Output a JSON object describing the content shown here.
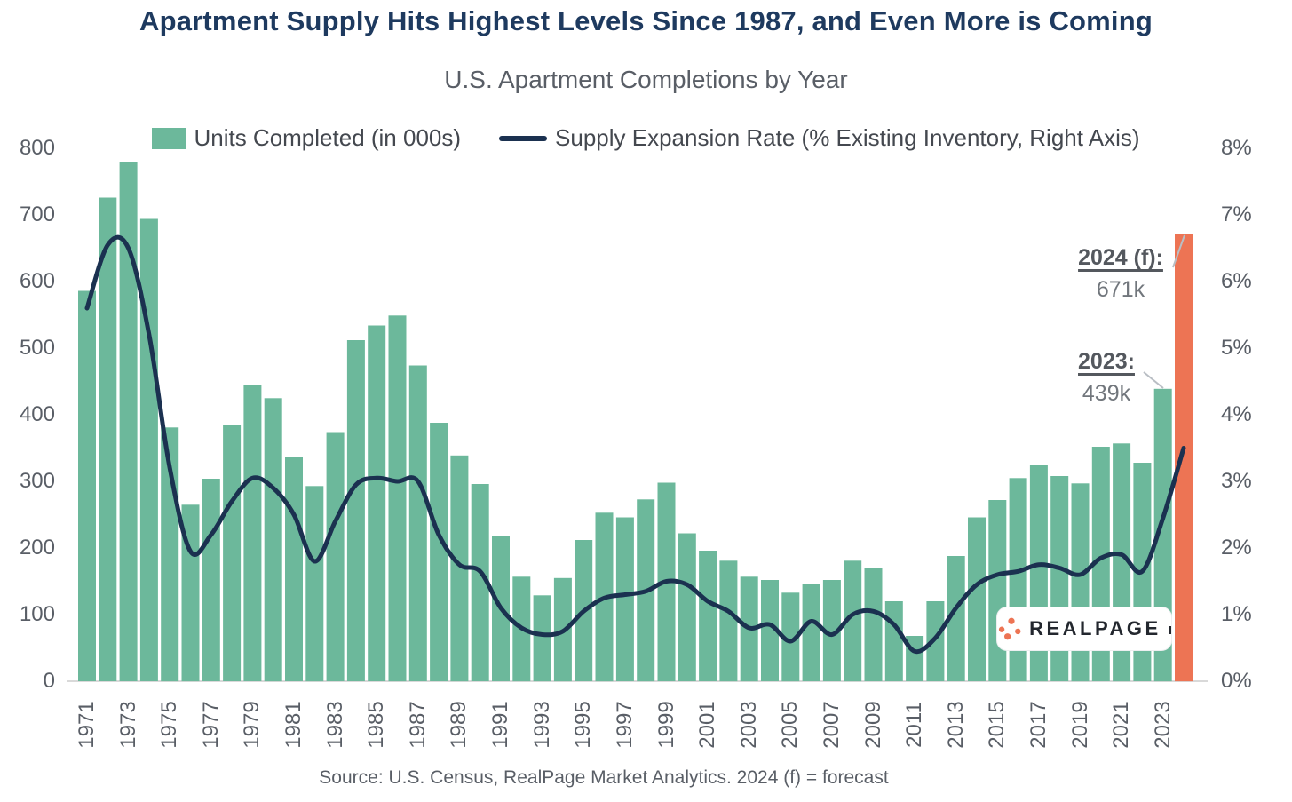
{
  "header": {
    "title": "Apartment Supply Hits Highest Levels Since 1987, and Even More is Coming",
    "subtitle": "U.S. Apartment Completions by Year"
  },
  "legend": {
    "bar": {
      "label": "Units Completed (in 000s)"
    },
    "line": {
      "label": "Supply Expansion Rate (% Existing Inventory, Right Axis)"
    }
  },
  "annotations": {
    "forecast": {
      "label": "2024 (f):",
      "value": "671k"
    },
    "latest": {
      "label": "2023:",
      "value": "439k"
    }
  },
  "footer": {
    "source": "Source: U.S. Census, RealPage Market Analytics. 2024 (f) = forecast"
  },
  "logo": {
    "text": "REALPAGE"
  },
  "colors": {
    "bar_green": "#6CB89B",
    "bar_orange": "#ED7454",
    "line_navy": "#1B3150",
    "title_navy": "#1E3A5F",
    "axis_gray": "#595E66",
    "baseline_gray": "#D9D9D9",
    "connector_gray": "#B9BEC4"
  },
  "chart_data": {
    "type": "bar",
    "title": "U.S. Apartment Completions by Year",
    "categories": [
      1971,
      1972,
      1973,
      1974,
      1975,
      1976,
      1977,
      1978,
      1979,
      1980,
      1981,
      1982,
      1983,
      1984,
      1985,
      1986,
      1987,
      1988,
      1989,
      1990,
      1991,
      1992,
      1993,
      1994,
      1995,
      1996,
      1997,
      1998,
      1999,
      2000,
      2001,
      2002,
      2003,
      2004,
      2005,
      2006,
      2007,
      2008,
      2009,
      2010,
      2011,
      2012,
      2013,
      2014,
      2015,
      2016,
      2017,
      2018,
      2019,
      2020,
      2021,
      2022,
      2023,
      2024
    ],
    "series": [
      {
        "name": "Units Completed (in 000s)",
        "type": "bar",
        "axis": "left",
        "unit": "thousands of units",
        "values": [
          586,
          726,
          780,
          694,
          381,
          265,
          304,
          384,
          444,
          425,
          336,
          293,
          374,
          512,
          534,
          549,
          474,
          388,
          339,
          296,
          218,
          157,
          129,
          155,
          212,
          253,
          246,
          273,
          298,
          222,
          196,
          181,
          157,
          152,
          133,
          146,
          152,
          181,
          170,
          120,
          68,
          120,
          188,
          246,
          272,
          305,
          325,
          308,
          297,
          352,
          357,
          328,
          439,
          671
        ]
      },
      {
        "name": "Supply Expansion Rate (% Existing Inventory, Right Axis)",
        "type": "line",
        "axis": "right",
        "unit": "percent",
        "values": [
          5.6,
          6.55,
          6.5,
          5.2,
          3.2,
          1.95,
          2.2,
          2.7,
          3.05,
          2.9,
          2.5,
          1.8,
          2.4,
          2.95,
          3.05,
          3.0,
          3.0,
          2.2,
          1.75,
          1.65,
          1.1,
          0.8,
          0.7,
          0.75,
          1.05,
          1.25,
          1.3,
          1.35,
          1.5,
          1.45,
          1.2,
          1.05,
          0.8,
          0.85,
          0.6,
          0.9,
          0.7,
          1.0,
          1.05,
          0.85,
          0.45,
          0.65,
          1.1,
          1.45,
          1.6,
          1.65,
          1.75,
          1.7,
          1.6,
          1.85,
          1.9,
          1.65,
          2.45,
          3.5
        ]
      }
    ],
    "left_axis": {
      "min": 0,
      "max": 800,
      "tick_step": 100,
      "ticks": [
        0,
        100,
        200,
        300,
        400,
        500,
        600,
        700,
        800
      ]
    },
    "right_axis": {
      "min": 0,
      "max": 8,
      "tick_step": 1,
      "tick_labels": [
        "0%",
        "1%",
        "2%",
        "3%",
        "4%",
        "5%",
        "6%",
        "7%",
        "8%"
      ]
    },
    "x_tick_years": [
      1971,
      1973,
      1975,
      1977,
      1979,
      1981,
      1983,
      1985,
      1987,
      1989,
      1991,
      1993,
      1995,
      1997,
      1999,
      2001,
      2003,
      2005,
      2007,
      2009,
      2011,
      2013,
      2015,
      2017,
      2019,
      2021,
      2023
    ],
    "highlight_year": 2024,
    "forecast_value_thousands": 671,
    "latest_value_thousands": 439,
    "grid": false,
    "legend_position": "top"
  }
}
